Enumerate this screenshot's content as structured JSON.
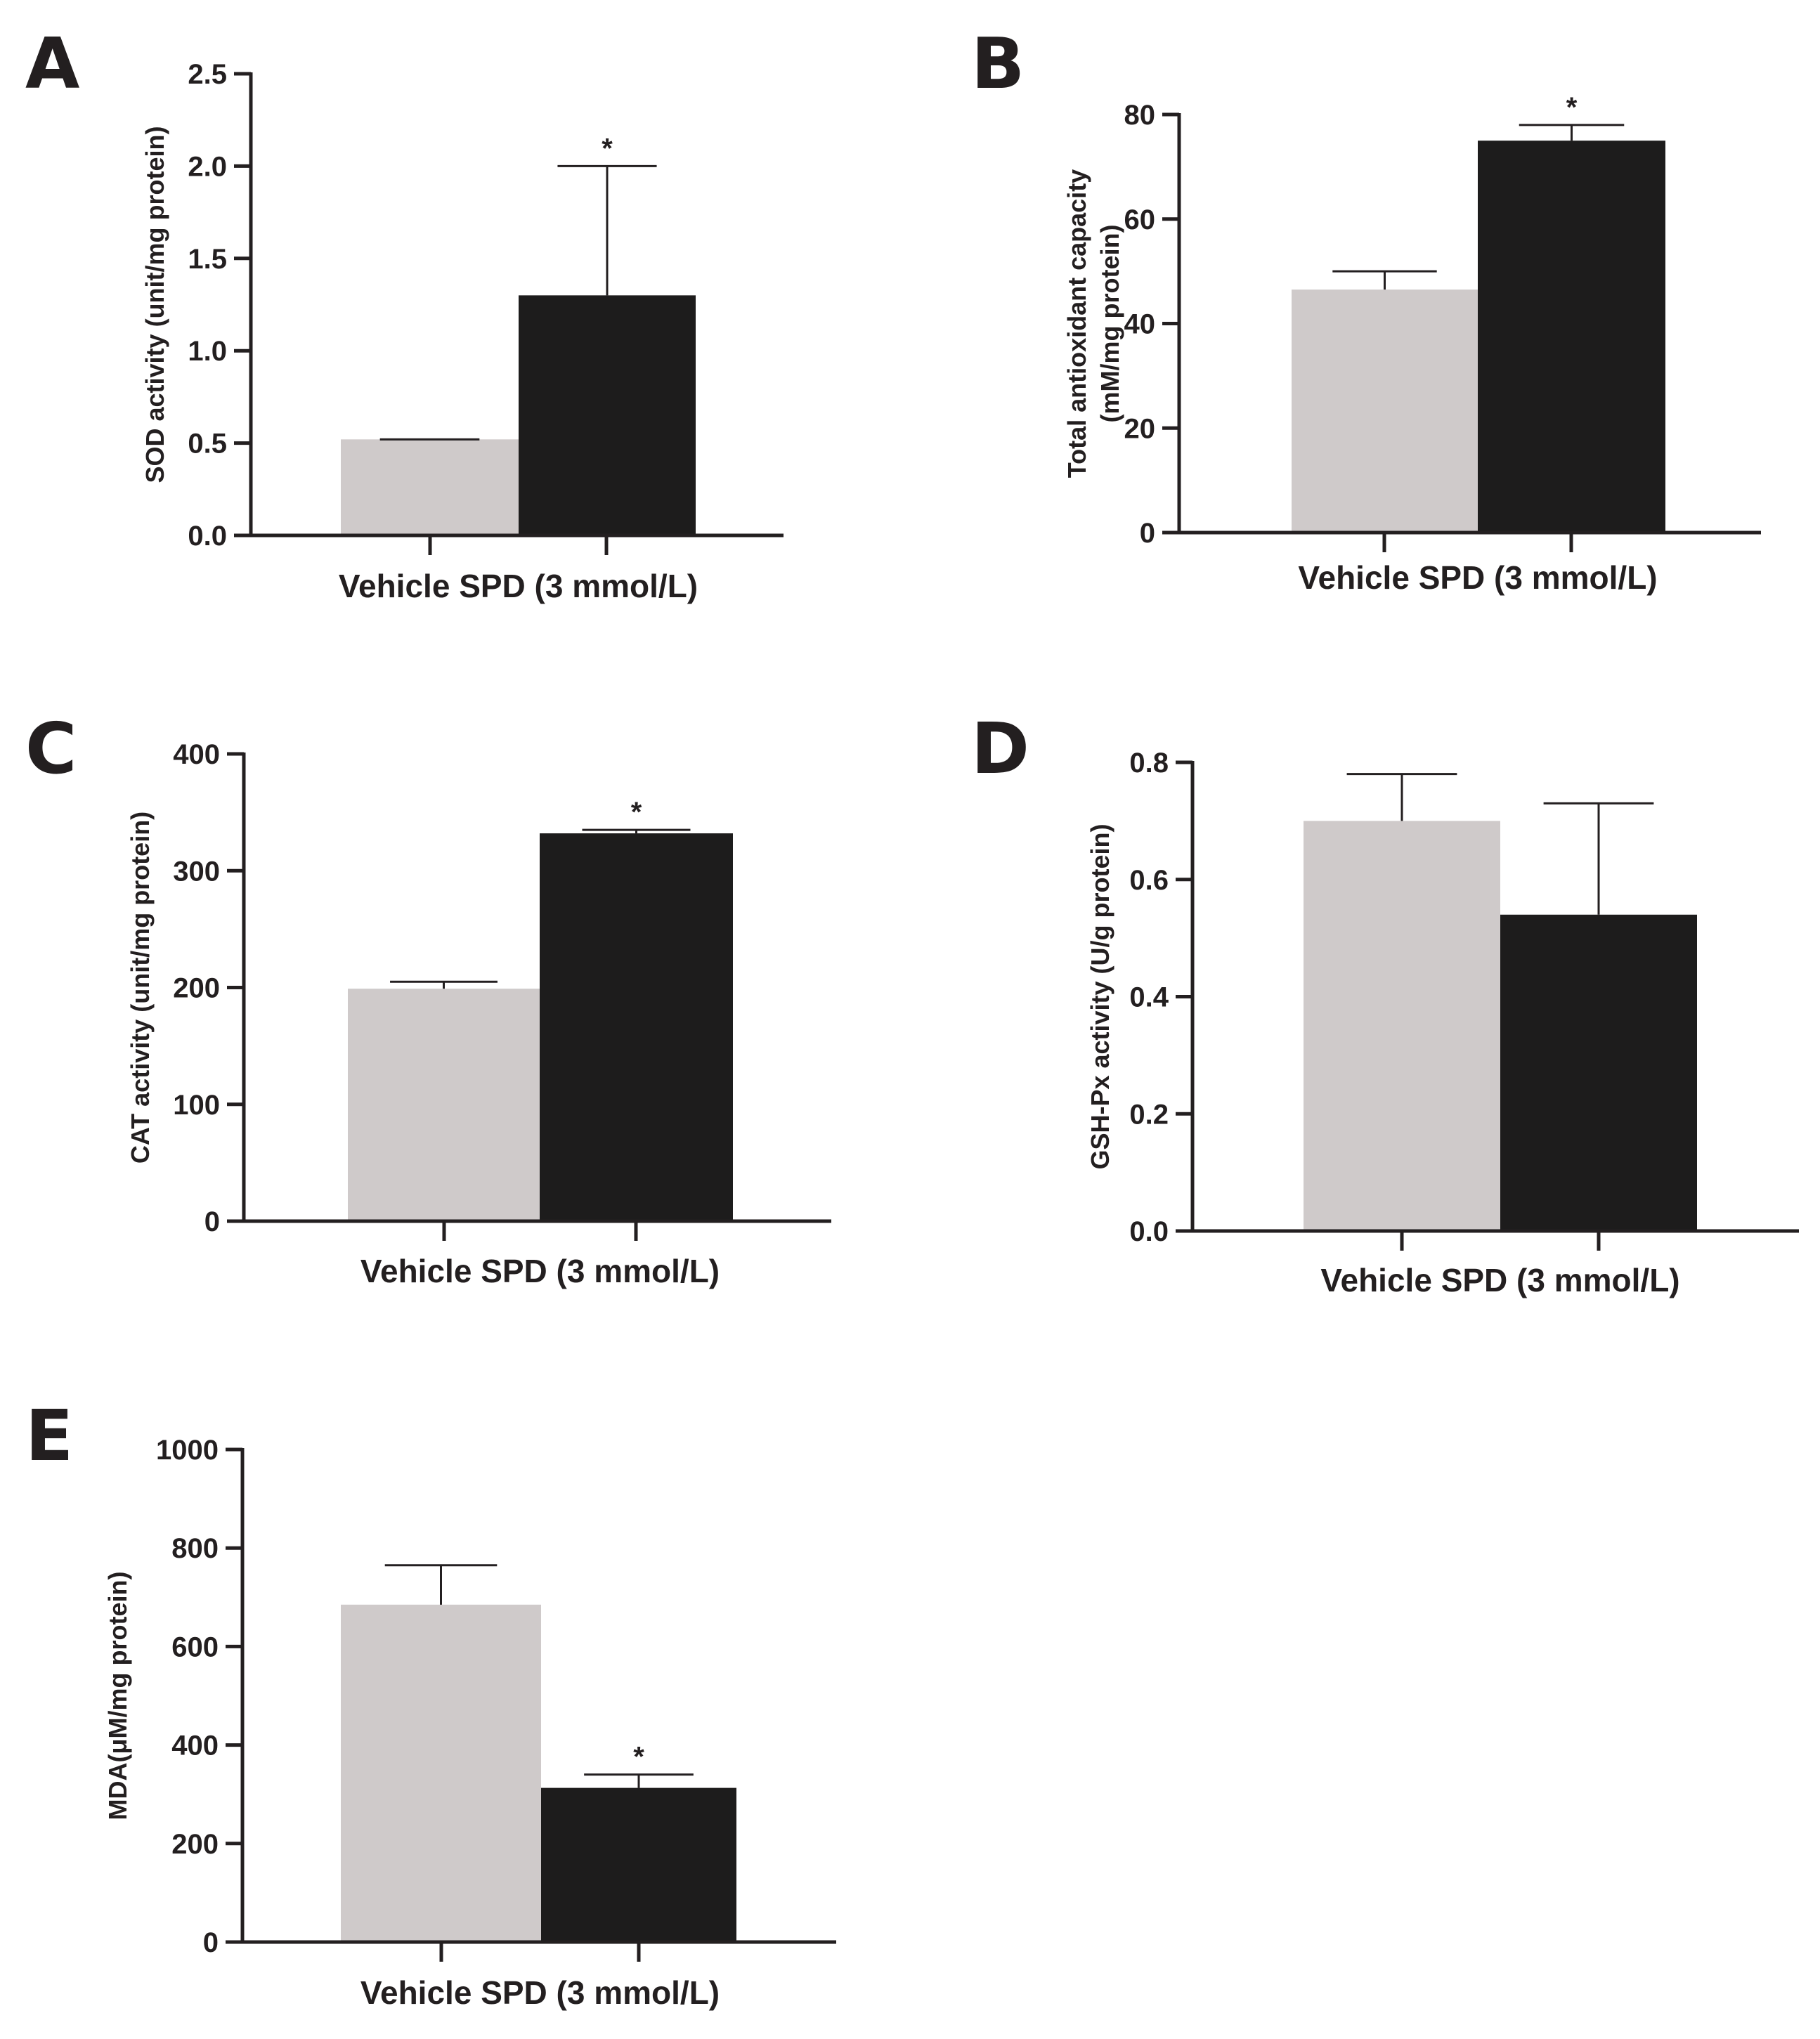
{
  "colors": {
    "vehicle": "#cfcaca",
    "spd": "#1d1c1c",
    "ink": "#231f20"
  },
  "chart_data": [
    {
      "panel": "A",
      "type": "bar",
      "categories": [
        "Vehicle",
        "SPD (3 mmol/L)"
      ],
      "xlabel": "Vehicle SPD (3 mmol/L)",
      "ylabel": "SOD activity (unit/mg protein)",
      "ylim": [
        0,
        2.5
      ],
      "yticks": [
        0,
        0.5,
        1,
        1.5,
        2,
        2.5
      ],
      "ytick_labels": [
        "0.0",
        "0.5",
        "1.0",
        "1.5",
        "2.0",
        "2.5"
      ],
      "values": [
        0.52,
        1.3
      ],
      "errors": [
        0.0,
        0.7
      ],
      "significance": [
        "",
        "*"
      ]
    },
    {
      "panel": "B",
      "type": "bar",
      "categories": [
        "Vehicle",
        "SPD (3 mmol/L)"
      ],
      "xlabel": "Vehicle SPD (3 mmol/L)",
      "ylabel": [
        "Total antioxidant capacity",
        "(mM/mg protein)"
      ],
      "ylim": [
        0,
        80
      ],
      "yticks": [
        0,
        20,
        40,
        60,
        80
      ],
      "ytick_labels": [
        "0",
        "20",
        "40",
        "60",
        "80"
      ],
      "values": [
        46.5,
        75
      ],
      "errors": [
        3.5,
        3
      ],
      "significance": [
        "",
        "*"
      ]
    },
    {
      "panel": "C",
      "type": "bar",
      "categories": [
        "Vehicle",
        "SPD (3 mmol/L)"
      ],
      "xlabel": "Vehicle SPD (3 mmol/L)",
      "ylabel": "CAT activity (unit/mg protein)",
      "ylim": [
        0,
        400
      ],
      "yticks": [
        0,
        100,
        200,
        300,
        400
      ],
      "ytick_labels": [
        "0",
        "100",
        "200",
        "300",
        "400"
      ],
      "values": [
        199,
        332
      ],
      "errors": [
        6,
        3
      ],
      "significance": [
        "",
        "*"
      ]
    },
    {
      "panel": "D",
      "type": "bar",
      "categories": [
        "Vehicle",
        "SPD (3 mmol/L)"
      ],
      "xlabel": "Vehicle SPD (3 mmol/L)",
      "ylabel": "GSH-Px activity (U/g protein)",
      "ylim": [
        0,
        0.8
      ],
      "yticks": [
        0,
        0.2,
        0.4,
        0.6,
        0.8
      ],
      "ytick_labels": [
        "0.0",
        "0.2",
        "0.4",
        "0.6",
        "0.8"
      ],
      "values": [
        0.7,
        0.54
      ],
      "errors": [
        0.08,
        0.19
      ],
      "significance": [
        "",
        ""
      ]
    },
    {
      "panel": "E",
      "type": "bar",
      "categories": [
        "Vehicle",
        "SPD (3 mmol/L)"
      ],
      "xlabel": "Vehicle SPD (3 mmol/L)",
      "ylabel": "MDA(μM/mg protein)",
      "ylim": [
        0,
        1000
      ],
      "yticks": [
        0,
        200,
        400,
        600,
        800,
        1000
      ],
      "ytick_labels": [
        "0",
        "200",
        "400",
        "600",
        "800",
        "1000"
      ],
      "values": [
        685,
        313
      ],
      "errors": [
        80,
        27
      ],
      "significance": [
        "",
        "*"
      ]
    }
  ]
}
